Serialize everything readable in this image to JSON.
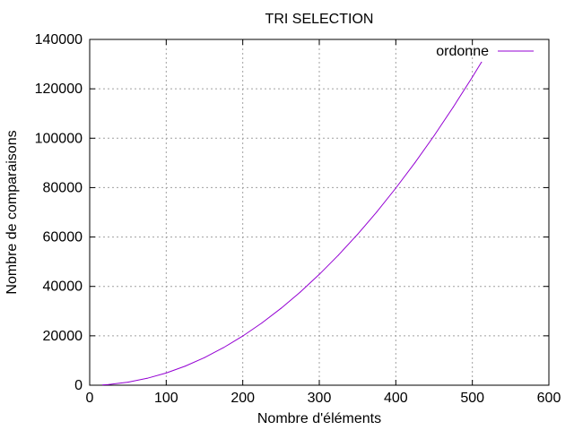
{
  "chart_data": {
    "type": "line",
    "title": "TRI SELECTION",
    "xlabel": "Nombre d'éléments",
    "ylabel": "Nombre de comparaisons",
    "xlim": [
      0,
      600
    ],
    "ylim": [
      0,
      140000
    ],
    "xticks": [
      "0",
      "100",
      "200",
      "300",
      "400",
      "500",
      "600"
    ],
    "yticks": [
      "0",
      "20000",
      "40000",
      "60000",
      "80000",
      "100000",
      "120000",
      "140000"
    ],
    "grid": true,
    "legend_position": "top-right",
    "series": [
      {
        "name": "ordonne",
        "color": "#9400d3",
        "x": [
          17,
          25,
          50,
          75,
          100,
          125,
          150,
          175,
          200,
          225,
          250,
          275,
          300,
          325,
          350,
          375,
          400,
          425,
          450,
          475,
          500,
          512
        ],
        "y": [
          136,
          300,
          1225,
          2775,
          4950,
          7750,
          11175,
          15225,
          19900,
          25200,
          31125,
          37675,
          44850,
          52650,
          61075,
          70125,
          79800,
          90100,
          101025,
          112575,
          124750,
          130816
        ]
      }
    ]
  }
}
